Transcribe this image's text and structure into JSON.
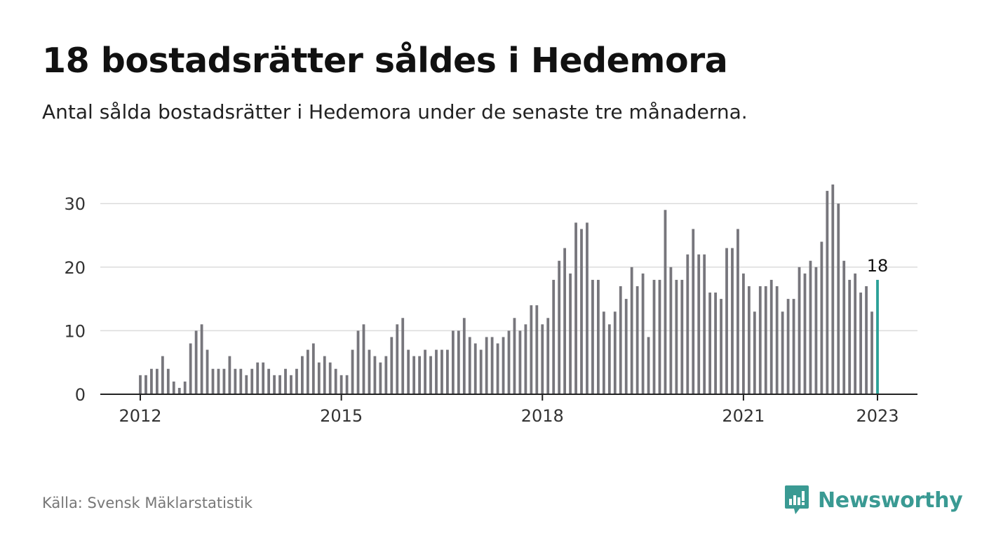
{
  "colors": {
    "bar": "#77767c",
    "highlight": "#2aa097",
    "grid": "#dcdcdc",
    "axis": "#222222",
    "brand": "#3a9a93"
  },
  "chart_data": {
    "type": "bar",
    "title": "18 bostadsrätter såldes i Hedemora",
    "subtitle": "Antal sålda bostadsrätter i Hedemora under de senaste tre månaderna.",
    "xlabel": "",
    "ylabel": "",
    "ylim": [
      0,
      33
    ],
    "yticks": [
      0,
      10,
      20,
      30
    ],
    "xticks": [
      "2012",
      "2015",
      "2018",
      "2021",
      "2023"
    ],
    "grid": true,
    "highlight_label": "18",
    "x_start": "2012-01",
    "x_end": "2023-01",
    "values": [
      3,
      3,
      4,
      4,
      6,
      4,
      2,
      1,
      2,
      8,
      10,
      11,
      7,
      4,
      4,
      4,
      6,
      4,
      4,
      3,
      4,
      5,
      5,
      4,
      3,
      3,
      4,
      3,
      4,
      6,
      7,
      8,
      5,
      6,
      5,
      4,
      3,
      3,
      7,
      10,
      11,
      7,
      6,
      5,
      6,
      9,
      11,
      12,
      7,
      6,
      6,
      7,
      6,
      7,
      7,
      7,
      10,
      10,
      12,
      9,
      8,
      7,
      9,
      9,
      8,
      9,
      10,
      12,
      10,
      11,
      14,
      14,
      11,
      12,
      18,
      21,
      23,
      19,
      27,
      26,
      27,
      18,
      18,
      13,
      11,
      13,
      17,
      15,
      20,
      17,
      19,
      9,
      18,
      18,
      29,
      20,
      18,
      18,
      22,
      26,
      22,
      22,
      16,
      16,
      15,
      23,
      23,
      26,
      19,
      17,
      13,
      17,
      17,
      18,
      17,
      13,
      15,
      15,
      20,
      19,
      21,
      20,
      24,
      32,
      33,
      30,
      21,
      18,
      19,
      16,
      17,
      13,
      18
    ]
  },
  "source": "Källa: Svensk Mäklarstatistik",
  "logo": {
    "name": "Newsworthy",
    "icon": "newsworthy-logo-icon"
  }
}
